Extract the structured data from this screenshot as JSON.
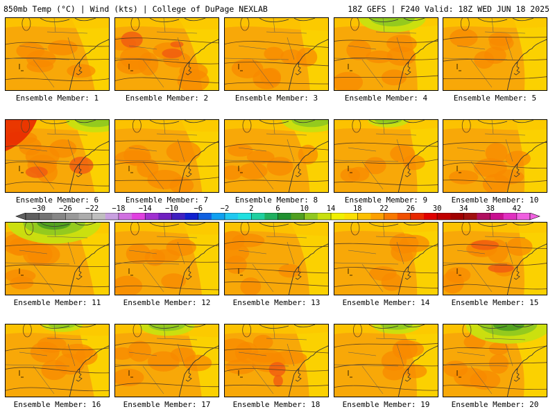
{
  "header": {
    "left_title": "850mb Temp (°C) | Wind (kts) | College of DuPage NEXLAB",
    "right_title": "18Z GEFS | F240 Valid: 18Z WED JUN 18 2025"
  },
  "colorbar": {
    "tick_labels": [
      "−30",
      "−26",
      "−22",
      "−18",
      "−14",
      "−10",
      "−6",
      "−2",
      "2",
      "6",
      "10",
      "14",
      "18",
      "22",
      "26",
      "30",
      "34",
      "38",
      "42"
    ],
    "tick_values": [
      -30,
      -26,
      -22,
      -18,
      -14,
      -10,
      -6,
      -2,
      2,
      6,
      10,
      14,
      18,
      22,
      26,
      30,
      34,
      38,
      42
    ],
    "min": -32,
    "max": 44,
    "step": 2,
    "colors": [
      "#606060",
      "#737373",
      "#868686",
      "#999999",
      "#acacac",
      "#bfbfbf",
      "#c8a0e0",
      "#d070e0",
      "#e040e0",
      "#a030d0",
      "#7020c0",
      "#4020c0",
      "#1020d0",
      "#1060e0",
      "#10a0f0",
      "#20c8f0",
      "#20e0e0",
      "#20d0a0",
      "#20b060",
      "#209030",
      "#50a020",
      "#90c820",
      "#c8e010",
      "#f0f000",
      "#fce000",
      "#fcc000",
      "#fca000",
      "#f87800",
      "#f05000",
      "#e82800",
      "#e00000",
      "#c00000",
      "#a00000",
      "#a01010",
      "#b01060",
      "#c81090",
      "#e030c0",
      "#f060e0"
    ]
  },
  "panels": [
    {
      "label": "Ensemble Member: 1",
      "warm": 0.35,
      "cool": 0.0,
      "hot": 0.0
    },
    {
      "label": "Ensemble Member: 2",
      "warm": 0.75,
      "cool": 0.0,
      "hot": 0.35
    },
    {
      "label": "Ensemble Member: 3",
      "warm": 0.45,
      "cool": 0.0,
      "hot": 0.0
    },
    {
      "label": "Ensemble Member: 4",
      "warm": 0.45,
      "cool": 0.45,
      "hot": 0.0
    },
    {
      "label": "Ensemble Member: 5",
      "warm": 0.3,
      "cool": 0.0,
      "hot": 0.0
    },
    {
      "label": "Ensemble Member: 6",
      "warm": 0.55,
      "cool": 0.35,
      "hot": 0.3
    },
    {
      "label": "Ensemble Member: 7",
      "warm": 0.55,
      "cool": 0.0,
      "hot": 0.0
    },
    {
      "label": "Ensemble Member: 8",
      "warm": 0.45,
      "cool": 0.35,
      "hot": 0.0
    },
    {
      "label": "Ensemble Member: 9",
      "warm": 0.3,
      "cool": 0.1,
      "hot": 0.0
    },
    {
      "label": "Ensemble Member: 10",
      "warm": 0.45,
      "cool": 0.0,
      "hot": 0.0
    },
    {
      "label": "Ensemble Member: 11",
      "warm": 0.55,
      "cool": 0.8,
      "hot": 0.0
    },
    {
      "label": "Ensemble Member: 12",
      "warm": 0.45,
      "cool": 0.0,
      "hot": 0.0
    },
    {
      "label": "Ensemble Member: 13",
      "warm": 0.45,
      "cool": 0.0,
      "hot": 0.0
    },
    {
      "label": "Ensemble Member: 14",
      "warm": 0.4,
      "cool": 0.0,
      "hot": 0.0
    },
    {
      "label": "Ensemble Member: 15",
      "warm": 0.6,
      "cool": 0.0,
      "hot": 0.3
    },
    {
      "label": "Ensemble Member: 16",
      "warm": 0.45,
      "cool": 0.1,
      "hot": 0.0
    },
    {
      "label": "Ensemble Member: 17",
      "warm": 0.45,
      "cool": 0.3,
      "hot": 0.0
    },
    {
      "label": "Ensemble Member: 18",
      "warm": 0.6,
      "cool": 0.0,
      "hot": 0.2
    },
    {
      "label": "Ensemble Member: 19",
      "warm": 0.4,
      "cool": 0.2,
      "hot": 0.0
    },
    {
      "label": "Ensemble Member: 20",
      "warm": 0.45,
      "cool": 0.7,
      "hot": 0.0
    }
  ]
}
